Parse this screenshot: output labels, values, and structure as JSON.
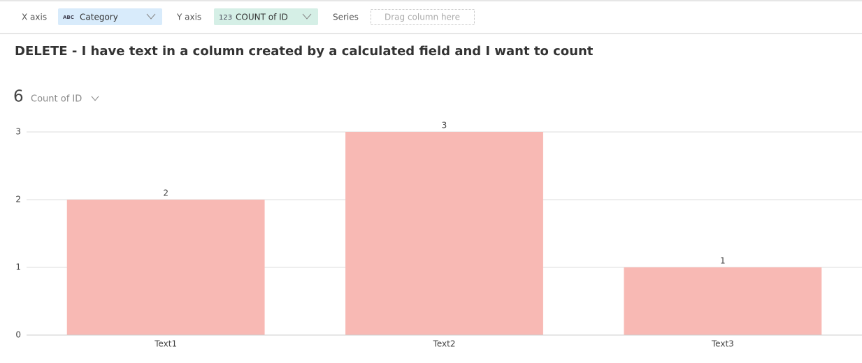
{
  "toolbar": {
    "x_axis_label": "X axis",
    "x_axis_icon": "ABC",
    "x_axis_field": "Category",
    "y_axis_label": "Y axis",
    "y_axis_icon": "123",
    "y_axis_field": "COUNT of ID",
    "series_label": "Series",
    "series_placeholder": "Drag column here"
  },
  "chart_data": {
    "type": "bar",
    "title": "DELETE - I have text in a column created by a calculated field and I want to count",
    "total": 6,
    "total_label": "Count of ID",
    "categories": [
      "Text1",
      "Text2",
      "Text3"
    ],
    "values": [
      2,
      3,
      1
    ],
    "color": "#f8b9b4",
    "ylim": [
      0,
      3
    ],
    "yticks": [
      0,
      1,
      2,
      3
    ],
    "grid": true
  }
}
